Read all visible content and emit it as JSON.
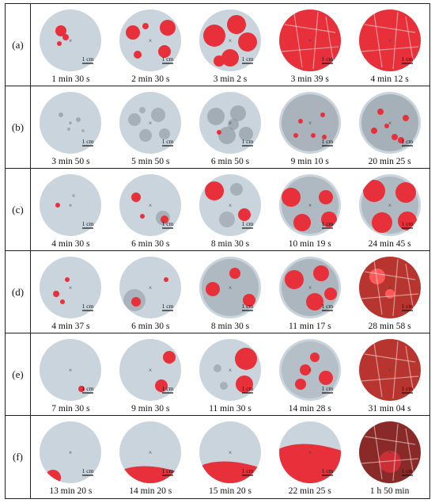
{
  "figure": {
    "rows": [
      {
        "label": "(a)",
        "panels": [
          {
            "time": "1 min 30 s",
            "scale": "1 cm"
          },
          {
            "time": "2 min 30 s",
            "scale": "1 cm"
          },
          {
            "time": "3 min 2 s",
            "scale": "1 cm"
          },
          {
            "time": "3 min 39 s",
            "scale": "1 cm"
          },
          {
            "time": "4 min 12 s",
            "scale": "1 cm"
          }
        ]
      },
      {
        "label": "(b)",
        "panels": [
          {
            "time": "3 min 50 s",
            "scale": "1 cm"
          },
          {
            "time": "5 min 50 s",
            "scale": "1 cm"
          },
          {
            "time": "6 min 50 s",
            "scale": "1 cm"
          },
          {
            "time": "9 min 10 s",
            "scale": "1 cm"
          },
          {
            "time": "20 min 25 s",
            "scale": "1 cm"
          }
        ]
      },
      {
        "label": "(c)",
        "panels": [
          {
            "time": "4 min 30 s",
            "scale": "1 cm"
          },
          {
            "time": "6 min 30 s",
            "scale": "1 cm"
          },
          {
            "time": "8 min 30 s",
            "scale": "1 cm"
          },
          {
            "time": "10 min 19 s",
            "scale": "1 cm"
          },
          {
            "time": "24 min 45 s",
            "scale": "1 cm"
          }
        ]
      },
      {
        "label": "(d)",
        "panels": [
          {
            "time": "4 min 37 s",
            "scale": "1 cm"
          },
          {
            "time": "6 min 30 s",
            "scale": "1 cm"
          },
          {
            "time": "8 min 30 s",
            "scale": "1 cm"
          },
          {
            "time": "11 min 17 s",
            "scale": "1 cm"
          },
          {
            "time": "28 min 58 s",
            "scale": "1 cm"
          }
        ]
      },
      {
        "label": "(e)",
        "panels": [
          {
            "time": "7 min 30 s",
            "scale": "1 cm"
          },
          {
            "time": "9 min 30 s",
            "scale": "1 cm"
          },
          {
            "time": "11 min 30 s",
            "scale": "1 cm"
          },
          {
            "time": "14 min 28 s",
            "scale": "1 cm"
          },
          {
            "time": "31 min 04 s",
            "scale": "1 cm"
          }
        ]
      },
      {
        "label": "(f)",
        "panels": [
          {
            "time": "13 min 20 s",
            "scale": "1 cm"
          },
          {
            "time": "14 min 20 s",
            "scale": "1 cm"
          },
          {
            "time": "15 min 20 s",
            "scale": "1 cm"
          },
          {
            "time": "22 min 25 s",
            "scale": "1 cm"
          },
          {
            "time": "1 h 50 min",
            "scale": "1 cm"
          }
        ]
      }
    ]
  },
  "colors": {
    "dish_background": "#c9d4dc",
    "red_spot": "#e8303a",
    "grey_wetting": "#9aa3ab",
    "grid_line": "#222222"
  }
}
